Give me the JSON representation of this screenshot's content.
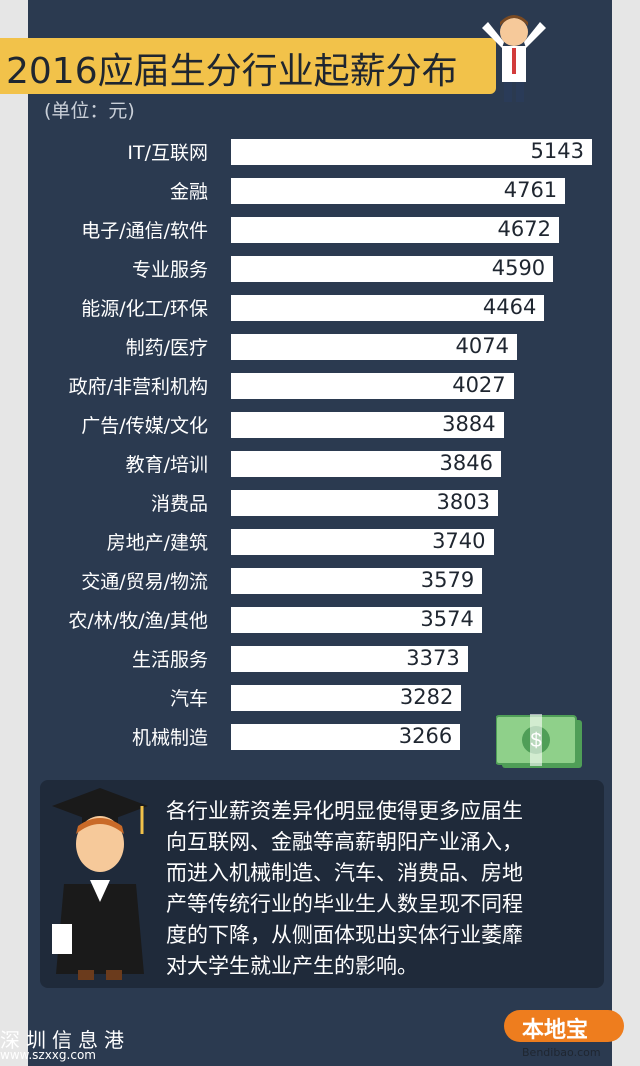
{
  "title": "2016应届生分行业起薪分布",
  "unit": "(单位：元)",
  "chart_data": {
    "type": "bar",
    "orientation": "horizontal",
    "title": "2016应届生分行业起薪分布",
    "unit": "(单位：元)",
    "categories": [
      "IT/互联网",
      "金融",
      "电子/通信/软件",
      "专业服务",
      "能源/化工/环保",
      "制药/医疗",
      "政府/非营利机构",
      "广告/传媒/文化",
      "教育/培训",
      "消费品",
      "房地产/建筑",
      "交通/贸易/物流",
      "农/林/牧/渔/其他",
      "生活服务",
      "汽车",
      "机械制造"
    ],
    "values": [
      5143,
      4761,
      4672,
      4590,
      4464,
      4074,
      4027,
      3884,
      3846,
      3803,
      3740,
      3579,
      3574,
      3373,
      3282,
      3266
    ],
    "colors": {
      "bar": "#ffffff",
      "background": "#2b3a50",
      "title_bg": "#f2c24a"
    }
  },
  "note": {
    "lines": [
      "各行业薪资差异化明显使得更多应届生",
      "向互联网、金融等高薪朝阳产业涌入，",
      "而进入机械制造、汽车、消费品、房地",
      "产等传统行业的毕业生人数呈现不同程",
      "度的下降，从侧面体现出实体行业萎靡",
      "对大学生就业产生的影响。"
    ]
  },
  "footer": {
    "left_brand": "深圳信息港",
    "left_url": "www.szxxg.com",
    "right_brand": "本地宝",
    "right_url": "Bendibao.com"
  },
  "icons": [
    "businessman-icon",
    "money-icon",
    "graduate-icon"
  ],
  "colors": {
    "panel": "#2b3a50",
    "accent": "#f2c24a",
    "note_bg": "#1f2a3a",
    "logo": "#ee7d1e"
  }
}
